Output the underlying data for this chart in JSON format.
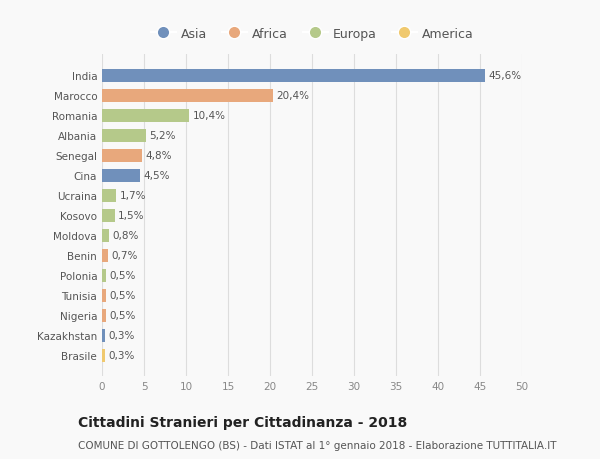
{
  "countries": [
    "India",
    "Marocco",
    "Romania",
    "Albania",
    "Senegal",
    "Cina",
    "Ucraina",
    "Kosovo",
    "Moldova",
    "Benin",
    "Polonia",
    "Tunisia",
    "Nigeria",
    "Kazakhstan",
    "Brasile"
  ],
  "values": [
    45.6,
    20.4,
    10.4,
    5.2,
    4.8,
    4.5,
    1.7,
    1.5,
    0.8,
    0.7,
    0.5,
    0.5,
    0.5,
    0.3,
    0.3
  ],
  "labels": [
    "45,6%",
    "20,4%",
    "10,4%",
    "5,2%",
    "4,8%",
    "4,5%",
    "1,7%",
    "1,5%",
    "0,8%",
    "0,7%",
    "0,5%",
    "0,5%",
    "0,5%",
    "0,3%",
    "0,3%"
  ],
  "continents": [
    "Asia",
    "Africa",
    "Europa",
    "Europa",
    "Africa",
    "Asia",
    "Europa",
    "Europa",
    "Europa",
    "Africa",
    "Europa",
    "Africa",
    "Africa",
    "Asia",
    "America"
  ],
  "continent_colors": {
    "Asia": "#7090bb",
    "Africa": "#e8a87c",
    "Europa": "#b5c98a",
    "America": "#f0c96e"
  },
  "legend_order": [
    "Asia",
    "Africa",
    "Europa",
    "America"
  ],
  "xlim": [
    0,
    50
  ],
  "xticks": [
    0,
    5,
    10,
    15,
    20,
    25,
    30,
    35,
    40,
    45,
    50
  ],
  "title": "Cittadini Stranieri per Cittadinanza - 2018",
  "subtitle": "COMUNE DI GOTTOLENGO (BS) - Dati ISTAT al 1° gennaio 2018 - Elaborazione TUTTITALIA.IT",
  "bg_color": "#f9f9f9",
  "grid_color": "#dddddd",
  "bar_height": 0.65,
  "label_fontsize": 7.5,
  "tick_fontsize": 7.5,
  "title_fontsize": 10,
  "subtitle_fontsize": 7.5,
  "legend_fontsize": 9
}
